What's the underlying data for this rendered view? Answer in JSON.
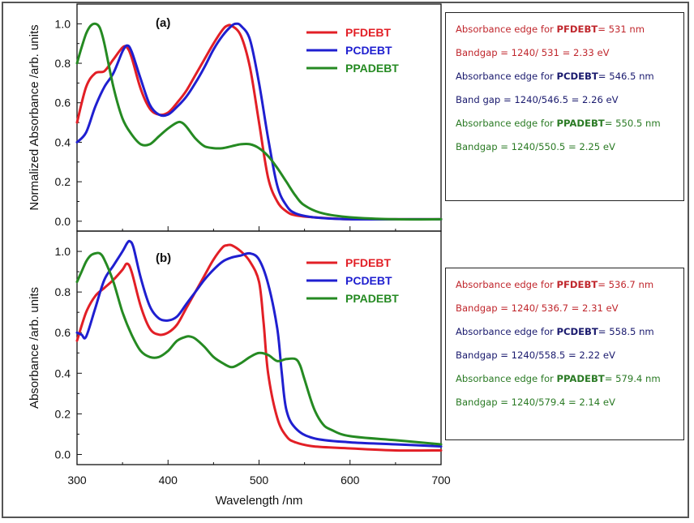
{
  "chart_data": [
    {
      "type": "line",
      "panel_label": "(a)",
      "ylabel": "Normalized Absorbance /arb. units",
      "xlabel": "",
      "xlim": [
        300,
        700
      ],
      "ylim": [
        -0.05,
        1.1
      ],
      "y_ticks": [
        "0.0",
        "0.2",
        "0.4",
        "0.6",
        "0.8",
        "1.0"
      ],
      "x_ticks": [],
      "legend": [
        "PFDEBT",
        "PCDEBT",
        "PPADEBT"
      ],
      "series": [
        {
          "name": "PFDEBT",
          "color": "#e21f26",
          "x": [
            300,
            310,
            320,
            330,
            340,
            350,
            355,
            360,
            370,
            380,
            390,
            400,
            410,
            420,
            430,
            440,
            450,
            460,
            465,
            470,
            480,
            490,
            500,
            510,
            520,
            530,
            540,
            560,
            600,
            650,
            700
          ],
          "y": [
            0.5,
            0.68,
            0.75,
            0.76,
            0.82,
            0.88,
            0.88,
            0.83,
            0.67,
            0.57,
            0.54,
            0.55,
            0.6,
            0.66,
            0.74,
            0.82,
            0.9,
            0.97,
            0.99,
            0.99,
            0.94,
            0.78,
            0.5,
            0.22,
            0.1,
            0.05,
            0.03,
            0.02,
            0.01,
            0.01,
            0.01
          ]
        },
        {
          "name": "PCDEBT",
          "color": "#1f1fd0",
          "x": [
            300,
            310,
            320,
            330,
            340,
            350,
            355,
            360,
            370,
            380,
            390,
            400,
            410,
            420,
            430,
            440,
            450,
            460,
            470,
            475,
            480,
            490,
            500,
            510,
            520,
            530,
            540,
            560,
            600,
            650,
            700
          ],
          "y": [
            0.4,
            0.45,
            0.58,
            0.68,
            0.75,
            0.86,
            0.89,
            0.86,
            0.72,
            0.59,
            0.54,
            0.54,
            0.58,
            0.63,
            0.7,
            0.78,
            0.87,
            0.94,
            0.99,
            1.0,
            0.99,
            0.92,
            0.7,
            0.42,
            0.18,
            0.08,
            0.04,
            0.02,
            0.01,
            0.01,
            0.01
          ]
        },
        {
          "name": "PPADEBT",
          "color": "#258a22",
          "x": [
            300,
            305,
            310,
            315,
            320,
            325,
            330,
            340,
            350,
            360,
            370,
            380,
            390,
            400,
            410,
            415,
            420,
            430,
            440,
            450,
            460,
            470,
            480,
            490,
            500,
            510,
            520,
            530,
            540,
            550,
            570,
            600,
            650,
            700
          ],
          "y": [
            0.8,
            0.88,
            0.95,
            0.99,
            1.0,
            0.98,
            0.9,
            0.68,
            0.52,
            0.44,
            0.39,
            0.39,
            0.43,
            0.47,
            0.5,
            0.5,
            0.48,
            0.42,
            0.38,
            0.37,
            0.37,
            0.38,
            0.39,
            0.39,
            0.37,
            0.33,
            0.27,
            0.2,
            0.13,
            0.08,
            0.04,
            0.02,
            0.01,
            0.01
          ]
        }
      ]
    },
    {
      "type": "line",
      "panel_label": "(b)",
      "ylabel": "Absorbance /arb. units",
      "xlabel": "Wavelength /nm",
      "xlim": [
        300,
        700
      ],
      "ylim": [
        -0.05,
        1.1
      ],
      "y_ticks": [
        "0.0",
        "0.2",
        "0.4",
        "0.6",
        "0.8",
        "1.0"
      ],
      "x_ticks": [
        "300",
        "400",
        "500",
        "600",
        "700"
      ],
      "legend": [
        "PFDEBT",
        "PCDEBT",
        "PPADEBT"
      ],
      "series": [
        {
          "name": "PFDEBT",
          "color": "#e21f26",
          "x": [
            300,
            310,
            320,
            330,
            340,
            350,
            355,
            360,
            370,
            380,
            390,
            400,
            410,
            420,
            430,
            440,
            450,
            460,
            465,
            470,
            480,
            490,
            500,
            505,
            510,
            520,
            530,
            540,
            560,
            600,
            650,
            700
          ],
          "y": [
            0.56,
            0.7,
            0.78,
            0.82,
            0.86,
            0.91,
            0.94,
            0.9,
            0.73,
            0.62,
            0.59,
            0.6,
            0.64,
            0.72,
            0.8,
            0.88,
            0.96,
            1.02,
            1.03,
            1.03,
            1.0,
            0.95,
            0.85,
            0.65,
            0.4,
            0.18,
            0.09,
            0.06,
            0.04,
            0.03,
            0.02,
            0.02
          ]
        },
        {
          "name": "PCDEBT",
          "color": "#1f1fd0",
          "x": [
            300,
            305,
            310,
            320,
            330,
            340,
            350,
            355,
            358,
            362,
            370,
            380,
            390,
            400,
            410,
            420,
            430,
            440,
            450,
            460,
            470,
            480,
            490,
            500,
            510,
            520,
            525,
            530,
            540,
            560,
            600,
            650,
            700
          ],
          "y": [
            0.6,
            0.59,
            0.58,
            0.72,
            0.86,
            0.93,
            1.0,
            1.04,
            1.05,
            1.02,
            0.87,
            0.73,
            0.67,
            0.66,
            0.68,
            0.74,
            0.8,
            0.86,
            0.91,
            0.95,
            0.97,
            0.98,
            0.99,
            0.96,
            0.84,
            0.62,
            0.4,
            0.22,
            0.13,
            0.08,
            0.06,
            0.05,
            0.04
          ]
        },
        {
          "name": "PPADEBT",
          "color": "#258a22",
          "x": [
            300,
            305,
            310,
            315,
            320,
            325,
            330,
            340,
            350,
            360,
            370,
            380,
            390,
            400,
            410,
            420,
            425,
            430,
            440,
            450,
            460,
            470,
            480,
            490,
            500,
            510,
            520,
            530,
            540,
            545,
            550,
            560,
            570,
            580,
            600,
            650,
            700
          ],
          "y": [
            0.85,
            0.9,
            0.95,
            0.98,
            0.99,
            0.99,
            0.96,
            0.85,
            0.7,
            0.59,
            0.51,
            0.48,
            0.48,
            0.51,
            0.56,
            0.58,
            0.58,
            0.57,
            0.53,
            0.48,
            0.45,
            0.43,
            0.45,
            0.48,
            0.5,
            0.49,
            0.46,
            0.47,
            0.47,
            0.44,
            0.37,
            0.23,
            0.15,
            0.12,
            0.09,
            0.07,
            0.05
          ]
        }
      ]
    }
  ],
  "info_boxes": [
    {
      "lines": [
        {
          "text": "Absorbance edge for ",
          "bold": "PFDEBT",
          "tail": "= 531 nm",
          "color": "#c0272d"
        },
        {
          "text": "Bandgap = 1240/ 531   = 2.33 eV",
          "bold": "",
          "tail": "",
          "color": "#c0272d"
        },
        {
          "text": "Absorbance edge for ",
          "bold": "PCDEBT",
          "tail": "= 546.5 nm",
          "color": "#1a1a6e"
        },
        {
          "text": "Band gap = 1240/546.5 = 2.26 eV",
          "bold": "",
          "tail": "",
          "color": "#1a1a6e"
        },
        {
          "text": "Absorbance edge for ",
          "bold": "PPADEBT",
          "tail": "= 550.5 nm",
          "color": "#2a7a24"
        },
        {
          "text": "Bandgap = 1240/550.5 = 2.25 eV",
          "bold": "",
          "tail": "",
          "color": "#2a7a24"
        }
      ]
    },
    {
      "lines": [
        {
          "text": "Absorbance edge for ",
          "bold": "PFDEBT",
          "tail": "= 536.7 nm",
          "color": "#c0272d"
        },
        {
          "text": "Bandgap = 1240/ 536.7   = 2.31 eV",
          "bold": "",
          "tail": "",
          "color": "#c0272d"
        },
        {
          "text": "Absorbance edge for ",
          "bold": "PCDEBT",
          "tail": "= 558.5 nm",
          "color": "#1a1a6e"
        },
        {
          "text": "Bandgap = 1240/558.5    = 2.22 eV",
          "bold": "",
          "tail": "",
          "color": "#1a1a6e"
        },
        {
          "text": "Absorbance edge for ",
          "bold": "PPADEBT",
          "tail": "= 579.4 nm",
          "color": "#2a7a24"
        },
        {
          "text": "Bandgap = 1240/579.4 = 2.14 eV",
          "bold": "",
          "tail": "",
          "color": "#2a7a24"
        }
      ]
    }
  ]
}
